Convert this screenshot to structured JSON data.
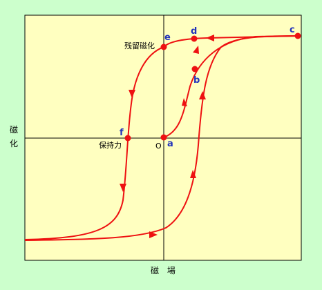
{
  "diagram": {
    "ylabel": "磁化",
    "xlabel": "磁 場",
    "origin_label": "O",
    "points": [
      {
        "id": "a",
        "label": "a"
      },
      {
        "id": "b",
        "label": "b"
      },
      {
        "id": "c",
        "label": "c"
      },
      {
        "id": "d",
        "label": "d"
      },
      {
        "id": "e",
        "label": "e"
      },
      {
        "id": "f",
        "label": "f"
      }
    ],
    "annotations": {
      "remanence": "残留磁化",
      "coercivity": "保持力"
    },
    "colors": {
      "background": "#ccffcc",
      "plot_area": "#ffffc0",
      "curve": "#ee1111",
      "point_label": "#2233bb",
      "axis": "#000000"
    }
  }
}
